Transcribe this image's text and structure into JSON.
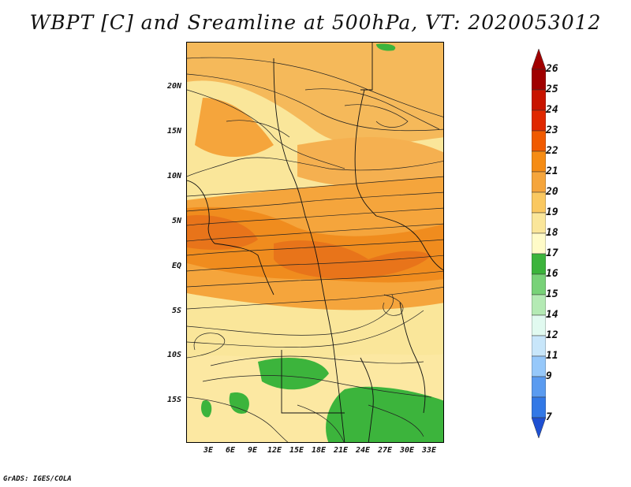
{
  "title": "WBPT [C] and Sreamline at 500hPa, VT: 2020053012",
  "credit": "GrADS: IGES/COLA",
  "lat_labels": [
    "20N",
    "15N",
    "10N",
    "5N",
    "EQ",
    "5S",
    "10S",
    "15S"
  ],
  "lon_labels": [
    "3E",
    "6E",
    "9E",
    "12E",
    "15E",
    "18E",
    "21E",
    "24E",
    "27E",
    "30E",
    "33E"
  ],
  "colorbar": {
    "levels": [
      "26",
      "25",
      "24",
      "23",
      "22",
      "21",
      "20",
      "19",
      "18",
      "17",
      "16",
      "15",
      "14",
      "12",
      "11",
      "9",
      "7"
    ],
    "colors": [
      "#a00000",
      "#c81400",
      "#e02800",
      "#f05a00",
      "#f58c14",
      "#f5a53c",
      "#fac860",
      "#fae69a",
      "#fffbc8",
      "#3cb43c",
      "#78d278",
      "#b4eab4",
      "#e1faf0",
      "#c8e6fa",
      "#96c8fa",
      "#5a9bf0",
      "#3278e6",
      "#1e50d2"
    ]
  }
}
